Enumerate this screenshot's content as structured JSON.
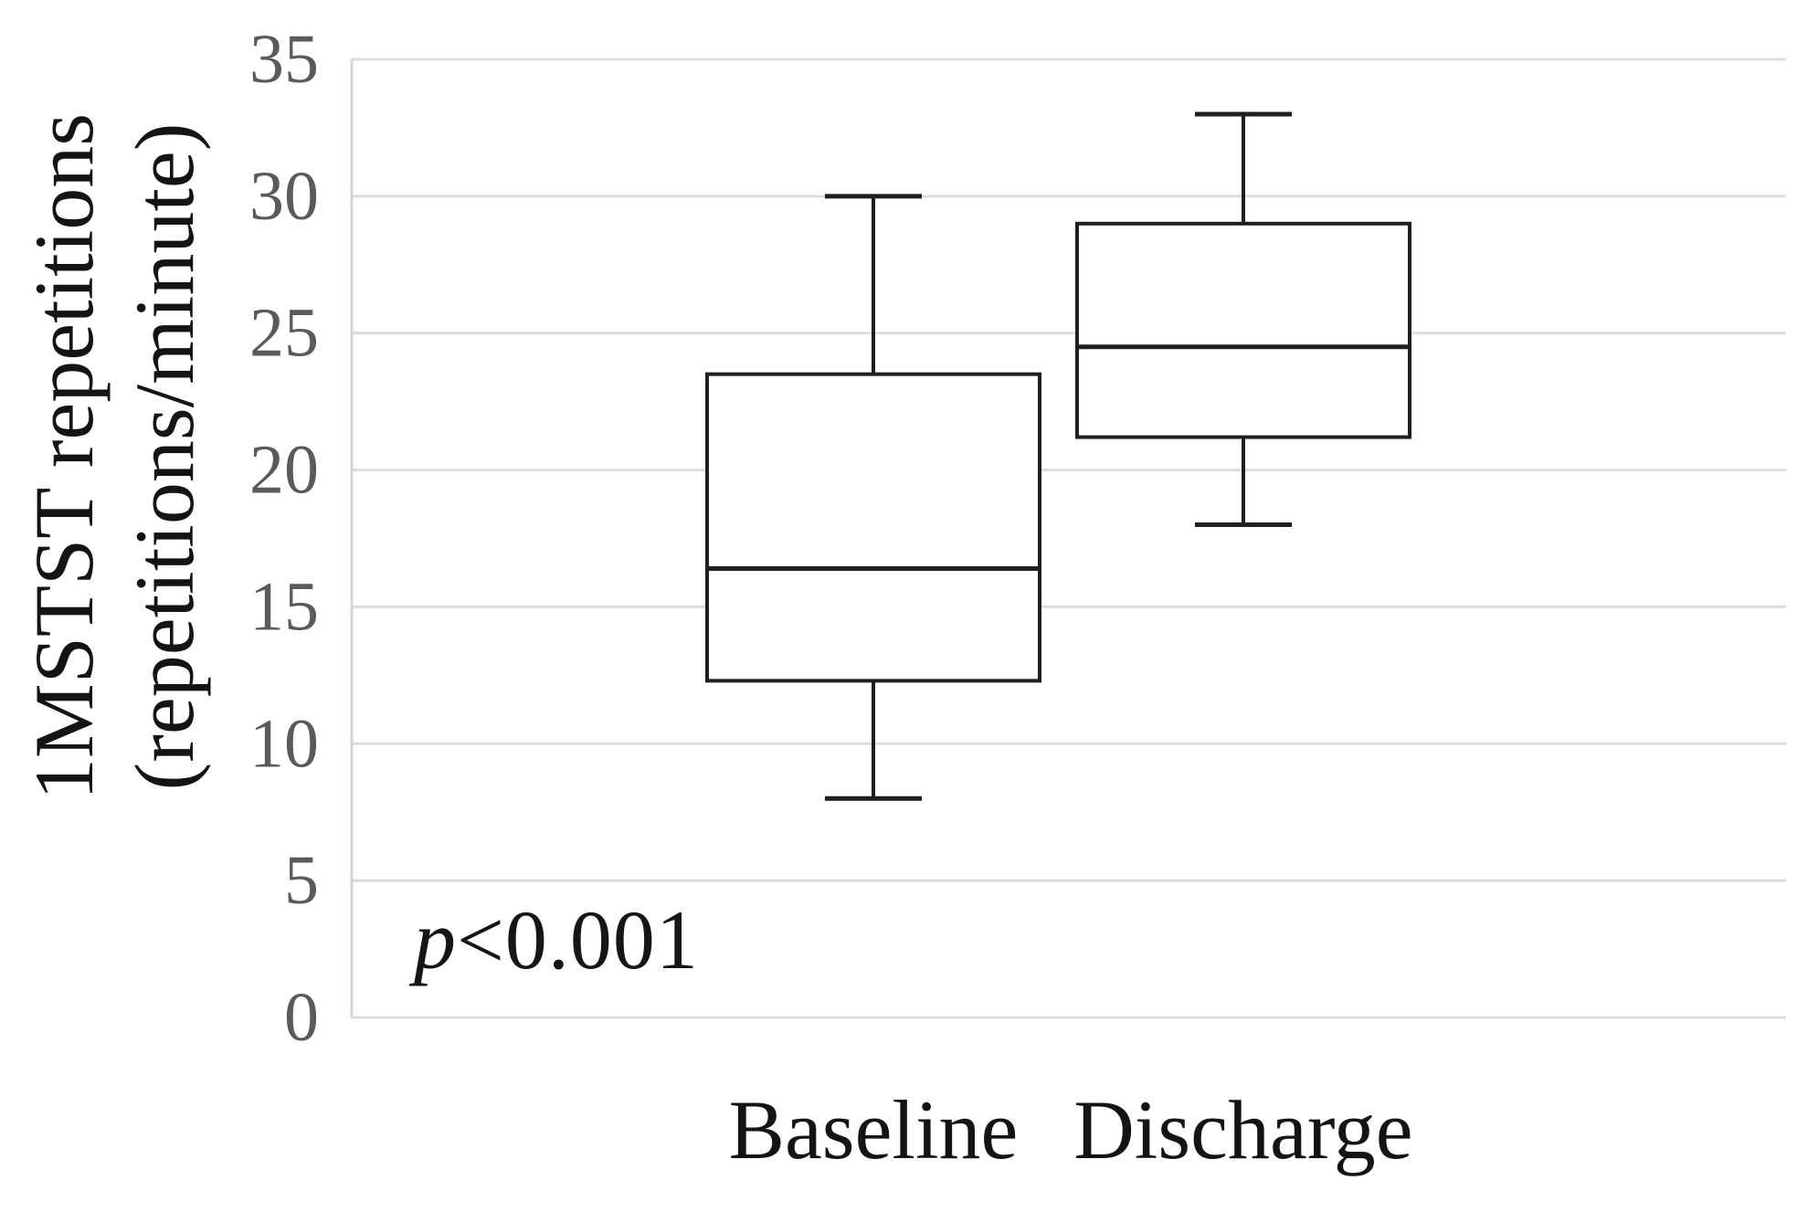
{
  "figure": {
    "background": "#ffffff",
    "y_axis_title_line1": "1MSTST repetitions",
    "y_axis_title_line2": "(repetitions/minute)",
    "annotation_italic": "p",
    "annotation_rest": "<0.001"
  },
  "chart_data": {
    "type": "boxplot",
    "title": "",
    "xlabel": "",
    "ylabel": "1MSTST repetitions (repetitions/minute)",
    "ylim": [
      0,
      35
    ],
    "yticks": [
      0,
      5,
      10,
      15,
      20,
      25,
      30,
      35
    ],
    "grid": "horizontal",
    "legend": "none",
    "annotation": "p<0.001",
    "categories": [
      "Baseline",
      "Discharge"
    ],
    "series": [
      {
        "name": "Baseline",
        "min": 8,
        "q1": 12.3,
        "median": 16.4,
        "q3": 23.5,
        "max": 30
      },
      {
        "name": "Discharge",
        "min": 18,
        "q1": 21.2,
        "median": 24.5,
        "q3": 29,
        "max": 33
      }
    ],
    "colors": {
      "box_stroke": "#1f1f1f",
      "box_fill": "#ffffff",
      "gridline": "#dcdcdc",
      "axis_spine": "#d4d4d4",
      "tick_label": "#5a5a5a",
      "category_label": "#141414",
      "axis_title": "#141414"
    }
  }
}
